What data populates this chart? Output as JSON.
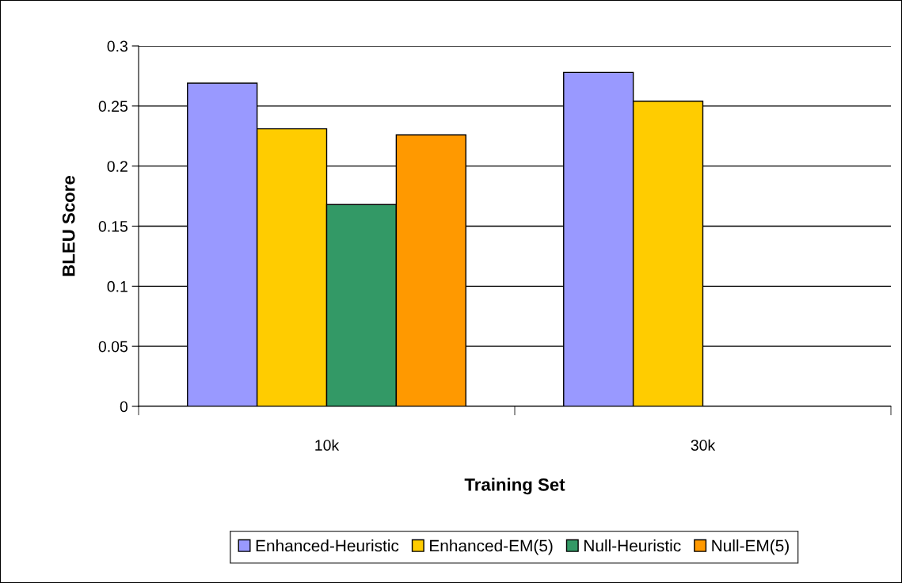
{
  "chart_data": {
    "type": "bar",
    "xlabel": "Training Set",
    "ylabel": "BLEU Score",
    "categories": [
      "10k",
      "30k"
    ],
    "series": [
      {
        "name": "Enhanced-Heuristic",
        "color": "#9999ff",
        "values": [
          0.269,
          0.278
        ]
      },
      {
        "name": "Enhanced-EM(5)",
        "color": "#ffcc00",
        "values": [
          0.231,
          0.254
        ]
      },
      {
        "name": "Null-Heuristic",
        "color": "#339966",
        "values": [
          0.168,
          null
        ]
      },
      {
        "name": "Null-EM(5)",
        "color": "#ff9900",
        "values": [
          0.226,
          null
        ]
      }
    ],
    "ylim": [
      0,
      0.3
    ],
    "yticks": [
      0,
      0.05,
      0.1,
      0.15,
      0.2,
      0.25,
      0.3
    ],
    "grid": "y",
    "legend": "bottom"
  }
}
